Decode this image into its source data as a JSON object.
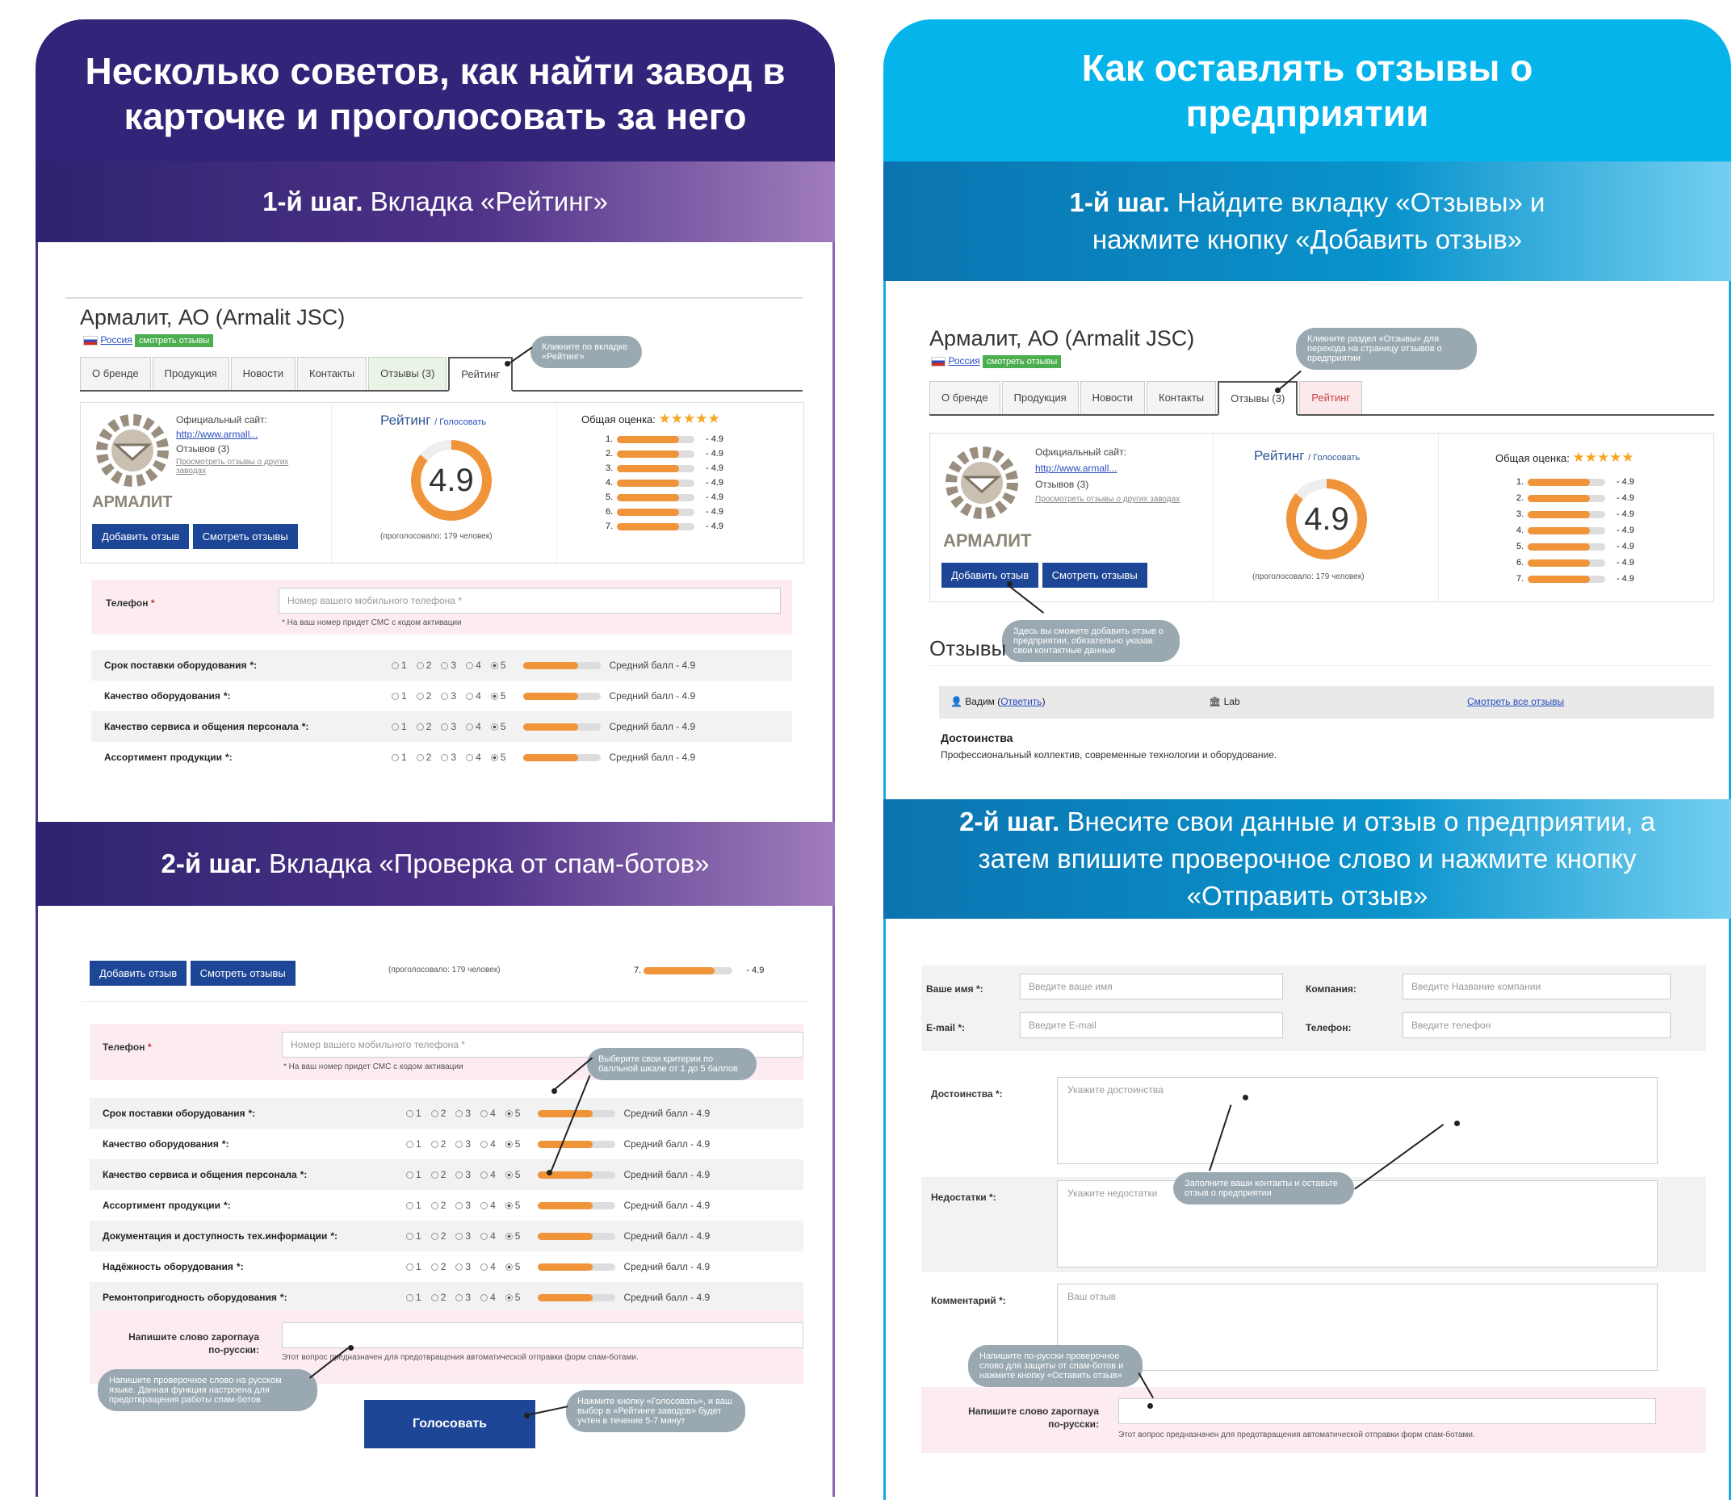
{
  "left": {
    "header": "Несколько советов, как найти завод в карточке и проголосовать за него",
    "step1": {
      "bold": "1-й шаг.",
      "text": "Вкладка «Рейтинг»"
    },
    "step2": {
      "bold": "2-й шаг.",
      "text": "Вкладка «Проверка от спам-ботов»"
    }
  },
  "right": {
    "header": "Как оставлять отзывы о предприятии",
    "step1": {
      "bold": "1-й шаг.",
      "text": "Найдите вкладку «Отзывы» и нажмите кнопку «Добавить отзыв»"
    },
    "step2": {
      "bold": "2-й шаг.",
      "text": "Внесите свои данные и отзыв о предприятии, а затем впишите проверочное слово и нажмите кнопку «Отправить отзыв»"
    }
  },
  "company": {
    "name": "Армалит, АО (Armalit JSC)",
    "country": "Россия",
    "reviews_btn": "смотреть отзывы",
    "site_label": "Официальный сайт:",
    "site_url": "http://www.armall...",
    "reviews_count": "Отзывов (3)",
    "other_reviews": "Просмотреть отзывы о других заводах",
    "logo_text": "АРМАЛИТ"
  },
  "tabs": [
    "О бренде",
    "Продукция",
    "Новости",
    "Контакты",
    "Отзывы (3)",
    "Рейтинг"
  ],
  "rating": {
    "title": "Рейтинг",
    "vote_link": "Голосовать",
    "value": "4.9",
    "voted": "(проголосовало: 179 человек)",
    "overall_label": "Общая оценка:",
    "rows": [
      {
        "n": "1.",
        "v": "- 4.9",
        "fill": 0.8
      },
      {
        "n": "2.",
        "v": "- 4.9",
        "fill": 0.8
      },
      {
        "n": "3.",
        "v": "- 4.9",
        "fill": 0.8
      },
      {
        "n": "4.",
        "v": "- 4.9",
        "fill": 0.8
      },
      {
        "n": "5.",
        "v": "- 4.9",
        "fill": 0.8
      },
      {
        "n": "6.",
        "v": "- 4.9",
        "fill": 0.8
      },
      {
        "n": "7.",
        "v": "- 4.9",
        "fill": 0.8
      }
    ]
  },
  "buttons": {
    "add_review": "Добавить отзыв",
    "view_reviews": "Смотреть отзывы",
    "vote": "Голосовать"
  },
  "phone": {
    "label": "Телефон",
    "req": "*",
    "placeholder": "Номер вашего мобильного телефона *",
    "hint": "* На ваш номер придет СМС с кодом активации"
  },
  "criteria": [
    "Срок поставки оборудования",
    "Качество оборудования",
    "Качество сервиса и общения персонала",
    "Ассортимент продукции",
    "Документация и доступность тех.информации",
    "Надёжность оборудования",
    "Ремонтопригодность оборудования"
  ],
  "crit_suffix": "*:",
  "radio_labels": [
    "1",
    "2",
    "3",
    "4",
    "5"
  ],
  "avg_label": "Средний балл - 4.9",
  "captcha": {
    "label": "Напишите слово zaporпaya по-русски:",
    "hint": "Этот вопрос предназначен для предотвращения автоматической отправки форм спам-ботами."
  },
  "notes": {
    "tab_rating": "Кликните по вкладке «Рейтинг»",
    "criteria": "Выберите свои критерии по балльной шкале от 1 до 5 баллов",
    "captcha": "Напишите проверочное слово на русском языке. Данная функция настроена для предотвращения работы спам-ботов",
    "vote": "Нажмите кнопку «Голосовать», и ваш выбор в «Рейтинге заводов» будет учтен в течение 5-7 минут",
    "reviews_tab": "Кликните раздел «Отзывы» для перехода на страницу отзывов о предприятии",
    "add_review": "Здесь вы сможете добавить отзыв о предприятии, обязательно указав свои контактные данные",
    "contacts": "Заполните ваши контакты и оставьте отзыв о предприятии",
    "captcha_r": "Напишите по-русски проверочное слово для защиты от спам-ботов и нажмите кнопку «Оставить отзыв»"
  },
  "reviews_section": {
    "title": "Отзывы",
    "author": "Вадим",
    "reply": "Ответить",
    "company": "Lab",
    "all": "Смотреть все отзывы",
    "pros_title": "Достоинства",
    "pros_text": "Профессиональный коллектив, современные технологии и оборудование."
  },
  "form": {
    "name_label": "Ваше имя *:",
    "name_ph": "Введите ваше имя",
    "company_label": "Компания:",
    "company_ph": "Введите Название компании",
    "email_label": "E-mail *:",
    "email_ph": "Введите E-mail",
    "phone_label": "Телефон:",
    "phone_ph": "Введите телефон",
    "pros_label": "Достоинства *:",
    "pros_ph": "Укажите достоинства",
    "cons_label": "Недостатки *:",
    "cons_ph": "Укажите недостатки",
    "comment_label": "Комментарий *:",
    "comment_ph": "Ваш отзыв"
  }
}
